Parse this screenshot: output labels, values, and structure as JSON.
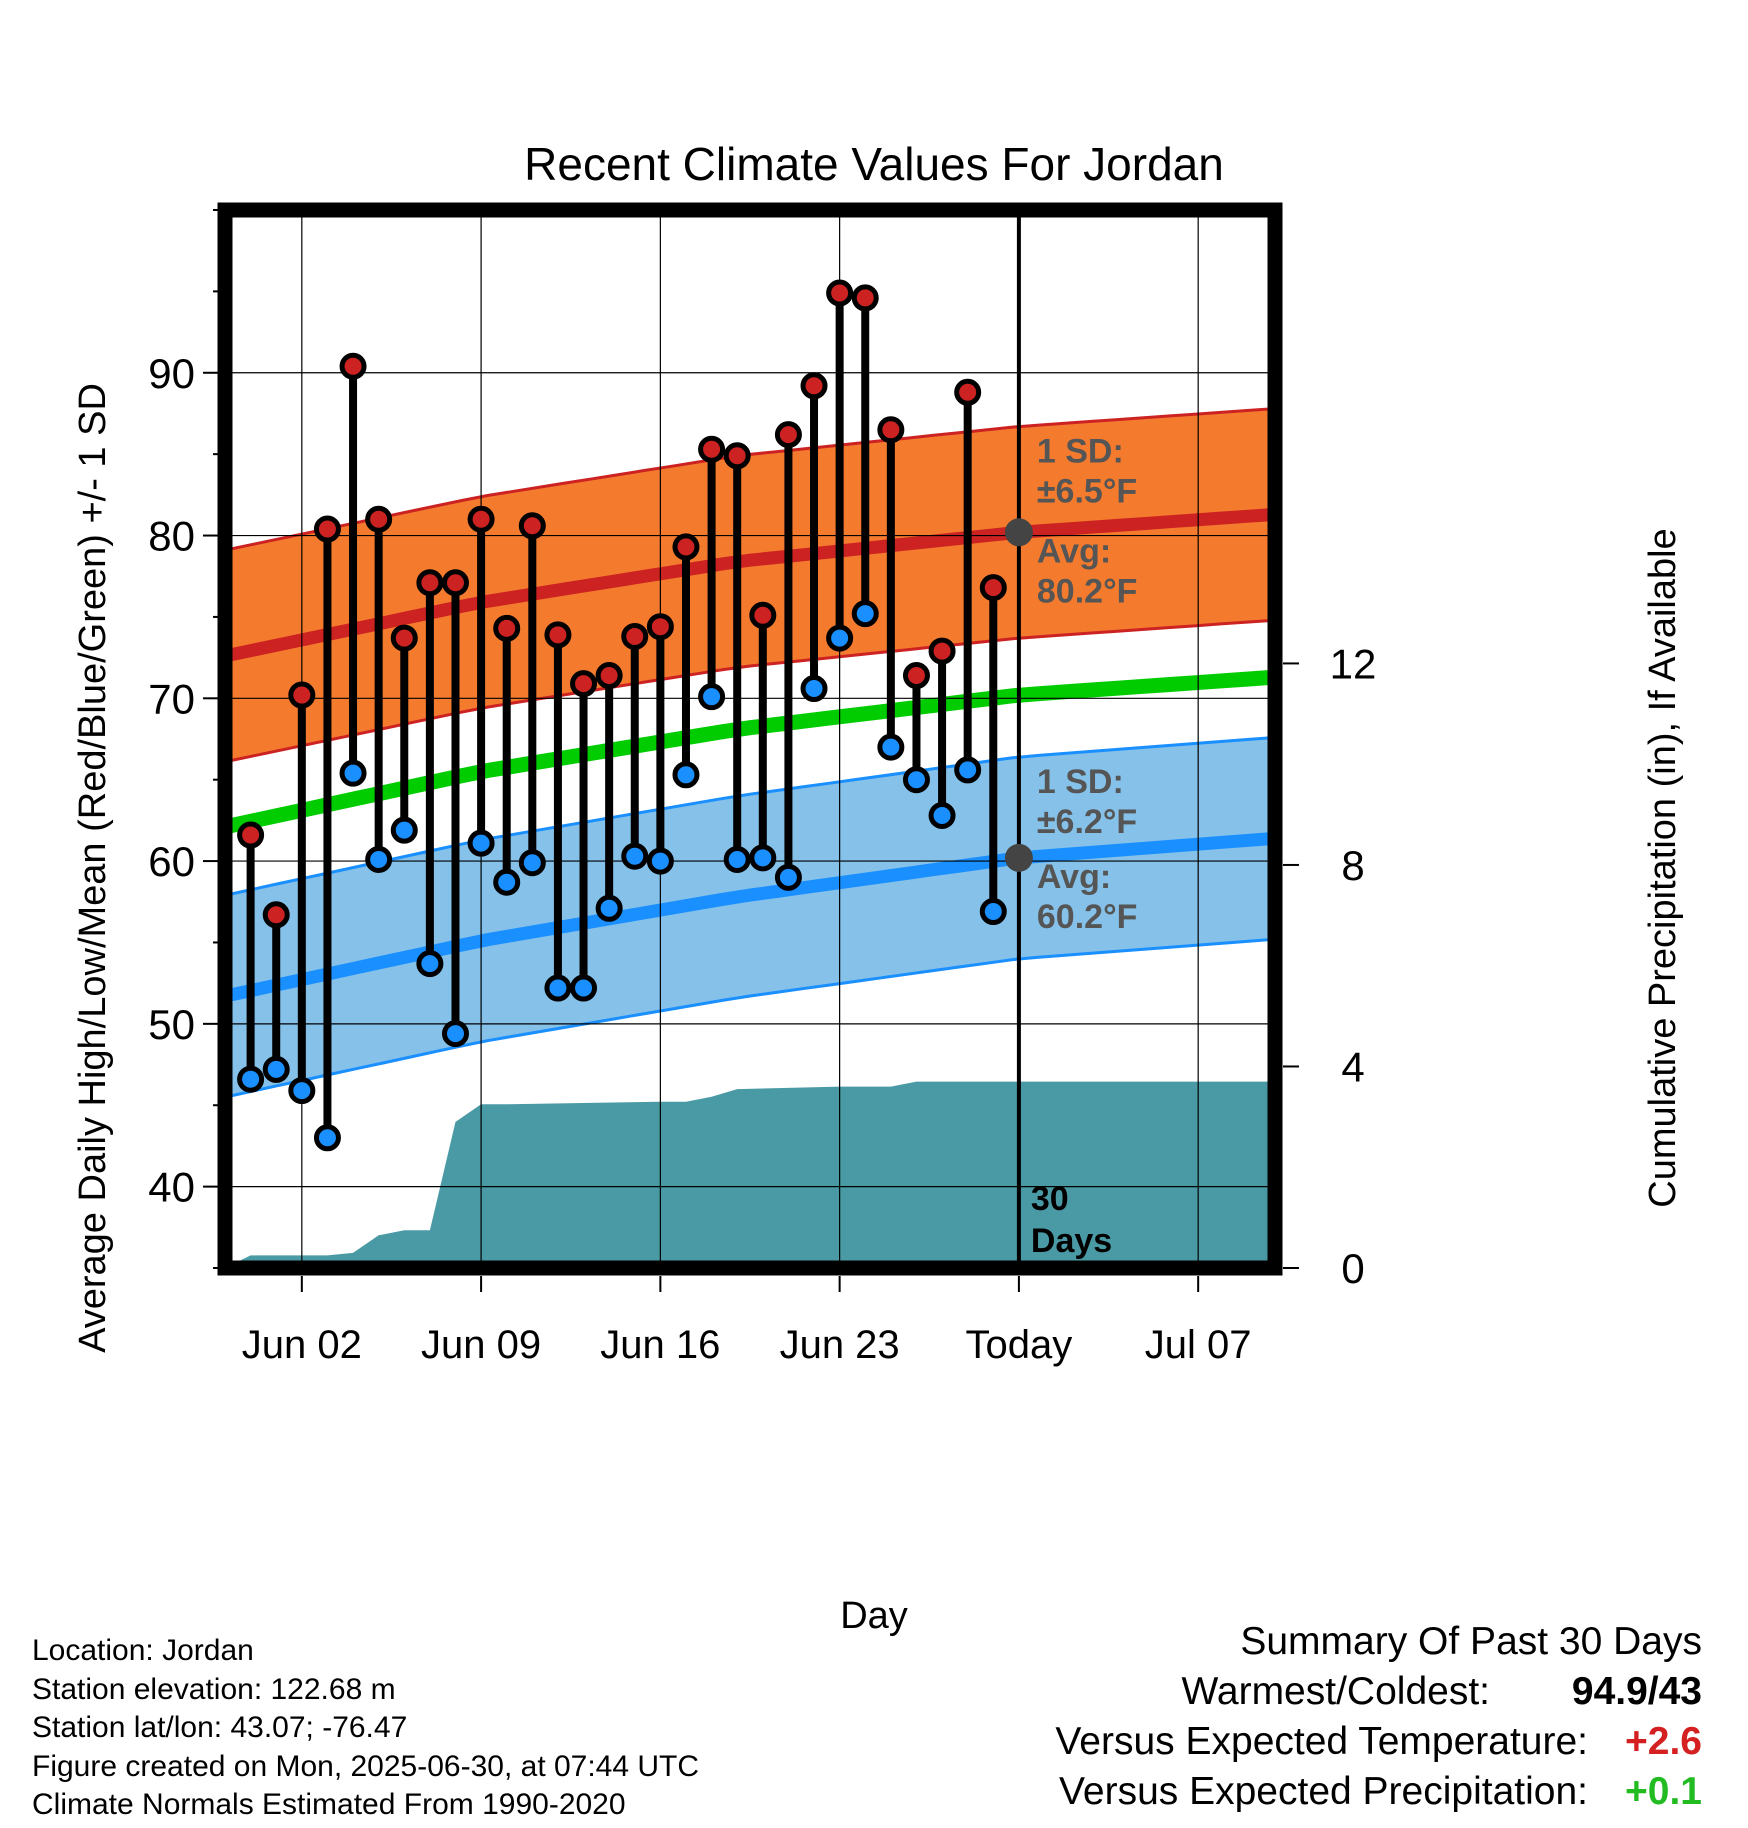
{
  "chart_data": {
    "type": "line",
    "title": "Recent Climate Values For Jordan",
    "xlabel": "Day",
    "ylabel": "Average Daily High/Low/Mean (Red/Blue/Green) +/- 1 SD",
    "y2label": "Cumulative Precipitation (in), If Available",
    "xlim": [
      "2025-05-30",
      "2025-07-10"
    ],
    "ylim": [
      35,
      100
    ],
    "y2lim": [
      0,
      21
    ],
    "grid": true,
    "x_ticks": [
      {
        "date": "2025-06-02",
        "label": "Jun 02"
      },
      {
        "date": "2025-06-09",
        "label": "Jun 09"
      },
      {
        "date": "2025-06-16",
        "label": "Jun 16"
      },
      {
        "date": "2025-06-23",
        "label": "Jun 23"
      },
      {
        "date": "2025-06-30",
        "label": "Today"
      },
      {
        "date": "2025-07-07",
        "label": "Jul 07"
      }
    ],
    "y_ticks": [
      40,
      50,
      60,
      70,
      80,
      90
    ],
    "y2_ticks": [
      0,
      4,
      8,
      12
    ],
    "colors": {
      "high": "#cc2222",
      "low": "#1a8fff",
      "mean": "#00cc00",
      "high_band": "#f47b2e",
      "low_band": "#85c1e9",
      "precip": "#4a9aa5",
      "today_marker": "#444444"
    },
    "observed": {
      "dates": [
        "2025-05-31",
        "2025-06-01",
        "2025-06-02",
        "2025-06-03",
        "2025-06-04",
        "2025-06-05",
        "2025-06-06",
        "2025-06-07",
        "2025-06-08",
        "2025-06-09",
        "2025-06-10",
        "2025-06-11",
        "2025-06-12",
        "2025-06-13",
        "2025-06-14",
        "2025-06-15",
        "2025-06-16",
        "2025-06-17",
        "2025-06-18",
        "2025-06-19",
        "2025-06-20",
        "2025-06-21",
        "2025-06-22",
        "2025-06-23",
        "2025-06-24",
        "2025-06-25",
        "2025-06-26",
        "2025-06-27",
        "2025-06-28",
        "2025-06-29"
      ],
      "high": [
        61.6,
        56.7,
        70.2,
        80.4,
        90.4,
        81.0,
        73.7,
        77.1,
        77.1,
        81.0,
        74.3,
        80.6,
        73.9,
        70.9,
        71.4,
        73.8,
        74.4,
        79.3,
        85.3,
        84.9,
        75.1,
        86.2,
        89.2,
        94.9,
        94.6,
        86.5,
        71.4,
        72.9,
        88.8,
        76.8
      ],
      "low": [
        46.6,
        47.2,
        45.9,
        43.0,
        65.4,
        60.1,
        61.9,
        53.7,
        49.4,
        61.1,
        58.7,
        59.9,
        52.2,
        52.2,
        57.1,
        60.3,
        60.0,
        65.3,
        70.1,
        60.1,
        60.2,
        59.0,
        70.6,
        73.7,
        75.2,
        67.0,
        65.0,
        62.8,
        65.6,
        56.9
      ]
    },
    "normals": {
      "dates": [
        "2025-05-30",
        "2025-06-09",
        "2025-06-19",
        "2025-06-30",
        "2025-07-10"
      ],
      "high_avg": [
        72.6,
        75.9,
        78.4,
        80.2,
        81.3
      ],
      "low_avg": [
        51.7,
        55.1,
        57.8,
        60.2,
        61.4
      ],
      "mean_avg": [
        62.1,
        65.5,
        68.1,
        70.2,
        71.3
      ],
      "high_sd": 6.5,
      "low_sd": 6.2
    },
    "precipitation": {
      "dates": [
        "2025-05-30",
        "2025-05-31",
        "2025-06-03",
        "2025-06-04",
        "2025-06-05",
        "2025-06-06",
        "2025-06-07",
        "2025-06-08",
        "2025-06-09",
        "2025-06-10",
        "2025-06-16",
        "2025-06-17",
        "2025-06-18",
        "2025-06-19",
        "2025-06-23",
        "2025-06-24",
        "2025-06-25",
        "2025-06-26",
        "2025-06-30",
        "2025-07-10"
      ],
      "values": [
        0.0,
        0.25,
        0.25,
        0.3,
        0.65,
        0.75,
        0.75,
        2.9,
        3.25,
        3.25,
        3.3,
        3.3,
        3.4,
        3.55,
        3.6,
        3.6,
        3.6,
        3.7,
        3.7,
        3.7
      ]
    },
    "annotations": {
      "high_sd": {
        "line1": "1 SD:",
        "line2": "±6.5°F"
      },
      "high_avg": {
        "line1": "Avg:",
        "line2": "80.2°F"
      },
      "low_sd": {
        "line1": "1 SD:",
        "line2": "±6.2°F"
      },
      "low_avg": {
        "line1": "Avg:",
        "line2": "60.2°F"
      },
      "days_line1": "30",
      "days_line2": "Days"
    }
  },
  "info": {
    "location": "Location: Jordan",
    "elevation": "Station elevation: 122.68 m",
    "latlon": "Station lat/lon: 43.07; -76.47",
    "created": "Figure created on Mon, 2025-06-30, at 07:44 UTC",
    "normals": "Climate Normals Estimated From 1990-2020"
  },
  "summary": {
    "title": "Summary Of Past 30 Days",
    "warmest_label": "Warmest/Coldest:",
    "warmest_value": "94.9/43",
    "temp_label": "Versus Expected Temperature:",
    "temp_value": "+2.6",
    "temp_color": "#d42020",
    "precip_label": "Versus Expected Precipitation:",
    "precip_value": "+0.1",
    "precip_color": "#22bb22"
  }
}
